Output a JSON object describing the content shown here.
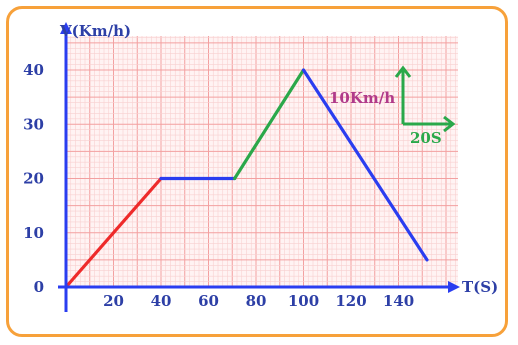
{
  "chart_data": {
    "type": "line",
    "ylabel": "V(Km/h)",
    "xlabel": "T(S)",
    "x_ticks": [
      20,
      40,
      60,
      80,
      100,
      120,
      140
    ],
    "y_ticks": [
      0,
      10,
      20,
      30,
      40
    ],
    "xlim": [
      0,
      162
    ],
    "ylim": [
      0,
      46
    ],
    "grid": true,
    "series": [
      {
        "color": "#ee2a2a",
        "points": [
          [
            0,
            0
          ],
          [
            40,
            20
          ]
        ]
      },
      {
        "color": "#2a3df0",
        "points": [
          [
            40,
            20
          ],
          [
            71,
            20
          ]
        ]
      },
      {
        "color": "#2aa84a",
        "points": [
          [
            71,
            20
          ],
          [
            100,
            40
          ]
        ]
      },
      {
        "color": "#2a3df0",
        "points": [
          [
            100,
            40
          ],
          [
            152,
            5
          ]
        ]
      }
    ],
    "scale_legend": {
      "vertical_label": "10Km/h",
      "horizontal_label": "20S",
      "color": "#2aa84a"
    }
  }
}
